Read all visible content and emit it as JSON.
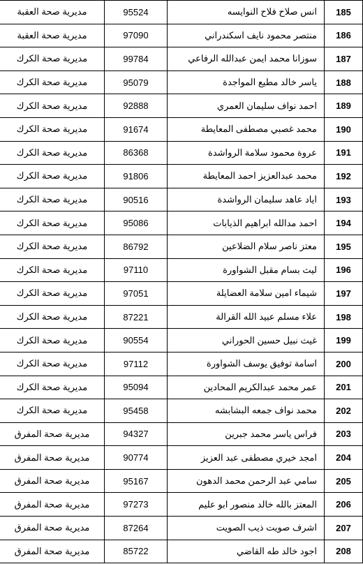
{
  "rows": [
    {
      "num": "185",
      "name": "انس صلاح فلاح النوايسه",
      "code": "95524",
      "dir": "مديرية صحة العقبة"
    },
    {
      "num": "186",
      "name": "منتصر محمود نايف اسكندراني",
      "code": "97090",
      "dir": "مديرية صحة العقبة"
    },
    {
      "num": "187",
      "name": "سوزانا محمد ايمن عبدالله الرفاعي",
      "code": "99784",
      "dir": "مديرية صحة الكرك"
    },
    {
      "num": "188",
      "name": "ياسر خالد مطيع المواجدة",
      "code": "95079",
      "dir": "مديرية صحة الكرك"
    },
    {
      "num": "189",
      "name": "احمد نواف سليمان العمري",
      "code": "92888",
      "dir": "مديرية صحة الكرك"
    },
    {
      "num": "190",
      "name": "محمد غصبي مصطفى المعايطة",
      "code": "91674",
      "dir": "مديرية صحة الكرك"
    },
    {
      "num": "191",
      "name": "عروة محمود سلامة الرواشدة",
      "code": "86368",
      "dir": "مديرية صحة الكرك"
    },
    {
      "num": "192",
      "name": "محمد عبدالعزيز احمد المعايطة",
      "code": "91806",
      "dir": "مديرية صحة الكرك"
    },
    {
      "num": "193",
      "name": "اياد عاهد سليمان الرواشدة",
      "code": "90516",
      "dir": "مديرية صحة الكرك"
    },
    {
      "num": "194",
      "name": "احمد مدالله ابراهيم الذيابات",
      "code": "95086",
      "dir": "مديرية صحة الكرك"
    },
    {
      "num": "195",
      "name": "معتز ناصر سلام الضلاعين",
      "code": "86792",
      "dir": "مديرية صحة الكرك"
    },
    {
      "num": "196",
      "name": "ليث بسام مقبل الشواورة",
      "code": "97110",
      "dir": "مديرية صحة الكرك"
    },
    {
      "num": "197",
      "name": "شيماء امين سلامة العضايلة",
      "code": "97051",
      "dir": "مديرية صحة الكرك"
    },
    {
      "num": "198",
      "name": "علاء مسلم عبيد الله القرالة",
      "code": "87221",
      "dir": "مديرية صحة الكرك"
    },
    {
      "num": "199",
      "name": "غيث نبيل حسين الحوراني",
      "code": "90554",
      "dir": "مديرية صحة الكرك"
    },
    {
      "num": "200",
      "name": "اسامة توفيق يوسف الشواورة",
      "code": "97112",
      "dir": "مديرية صحة الكرك"
    },
    {
      "num": "201",
      "name": "عمر محمد عبدالكريم المحادين",
      "code": "95094",
      "dir": "مديرية صحة الكرك"
    },
    {
      "num": "202",
      "name": "محمد نواف جمعه البشابشه",
      "code": "95458",
      "dir": "مديرية صحة الكرك"
    },
    {
      "num": "203",
      "name": "فراس ياسر محمد جبرين",
      "code": "94327",
      "dir": "مديرية صحة المفرق"
    },
    {
      "num": "204",
      "name": "امجد خيري مصطفى عبد العزيز",
      "code": "90774",
      "dir": "مديرية صحة المفرق"
    },
    {
      "num": "205",
      "name": "سامي عبد الرحمن محمد الدهون",
      "code": "95167",
      "dir": "مديرية صحة المفرق"
    },
    {
      "num": "206",
      "name": "المعتز بالله خالد منصور ابو عليم",
      "code": "97273",
      "dir": "مديرية صحة المفرق"
    },
    {
      "num": "207",
      "name": "اشرف صويت ذيب الصويت",
      "code": "87264",
      "dir": "مديرية صحة المفرق"
    },
    {
      "num": "208",
      "name": "اجود خالد طه القاضي",
      "code": "85722",
      "dir": "مديرية صحة المفرق"
    }
  ]
}
